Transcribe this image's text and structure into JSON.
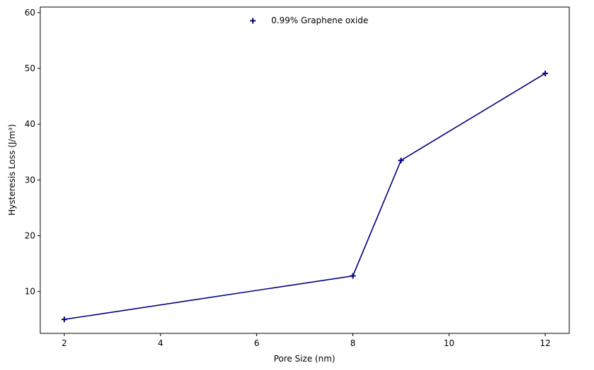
{
  "chart_data": {
    "type": "line",
    "title": "",
    "xlabel": "Pore Size (nm)",
    "ylabel": "Hysteresis Loss (J/m³)",
    "xlim": [
      1.5,
      12.5
    ],
    "ylim": [
      2.5,
      61
    ],
    "xticks": [
      2,
      4,
      6,
      8,
      10,
      12
    ],
    "yticks": [
      10,
      20,
      30,
      40,
      50,
      60
    ],
    "grid": false,
    "legend_position": "top-center",
    "series": [
      {
        "name": "0.99% Graphene oxide",
        "color": "#000080",
        "marker": "plus",
        "x": [
          2,
          8,
          9,
          12
        ],
        "y": [
          5.0,
          12.8,
          33.5,
          49.1
        ]
      }
    ]
  }
}
